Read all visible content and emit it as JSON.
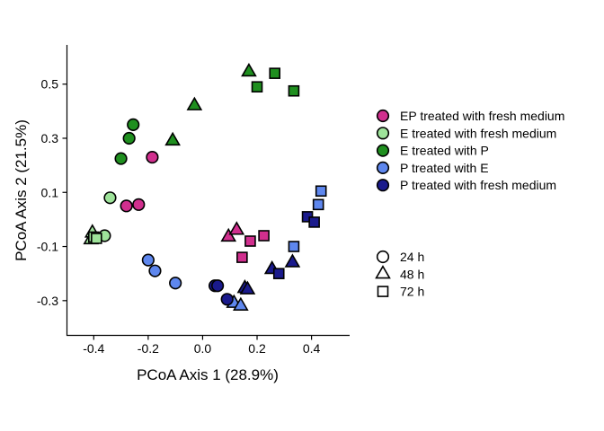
{
  "chart_data": {
    "type": "scatter",
    "title": "",
    "xlabel": "PCoA Axis 1 (28.9%)",
    "ylabel": "PCoA Axis 2 (21.5%)",
    "xlim": [
      -0.5,
      0.54
    ],
    "ylim": [
      -0.43,
      0.645
    ],
    "x_ticks": [
      {
        "value": -0.4,
        "label": "-0.4"
      },
      {
        "value": -0.2,
        "label": "-0.2"
      },
      {
        "value": 0.0,
        "label": "0.0"
      },
      {
        "value": 0.2,
        "label": "0.2"
      },
      {
        "value": 0.4,
        "label": "0.4"
      }
    ],
    "y_ticks": [
      {
        "value": -0.3,
        "label": "-0.3"
      },
      {
        "value": -0.1,
        "label": "-0.1"
      },
      {
        "value": 0.1,
        "label": "0.1"
      },
      {
        "value": 0.3,
        "label": "0.3"
      },
      {
        "value": 0.5,
        "label": "0.5"
      }
    ],
    "grid": false,
    "legend_placement": "right",
    "shape_legend": [
      {
        "shape": "circle",
        "label": "24 h"
      },
      {
        "shape": "triangle",
        "label": "48 h"
      },
      {
        "shape": "square",
        "label": "72 h"
      }
    ],
    "series": [
      {
        "name": "EP treated with fresh medium",
        "color": "#d12f8e",
        "points": [
          {
            "x": -0.28,
            "y": 0.05,
            "shape": "circle"
          },
          {
            "x": -0.235,
            "y": 0.055,
            "shape": "circle"
          },
          {
            "x": -0.185,
            "y": 0.23,
            "shape": "circle"
          },
          {
            "x": 0.095,
            "y": -0.065,
            "shape": "triangle"
          },
          {
            "x": 0.125,
            "y": -0.04,
            "shape": "triangle"
          },
          {
            "x": 0.145,
            "y": -0.14,
            "shape": "square"
          },
          {
            "x": 0.175,
            "y": -0.08,
            "shape": "square"
          },
          {
            "x": 0.225,
            "y": -0.06,
            "shape": "square"
          }
        ]
      },
      {
        "name": "E treated with fresh medium",
        "color": "#9ee39a",
        "points": [
          {
            "x": -0.34,
            "y": 0.08,
            "shape": "circle"
          },
          {
            "x": -0.36,
            "y": -0.06,
            "shape": "circle"
          },
          {
            "x": -0.41,
            "y": -0.075,
            "shape": "triangle"
          },
          {
            "x": -0.405,
            "y": -0.05,
            "shape": "triangle"
          },
          {
            "x": -0.4,
            "y": -0.065,
            "shape": "square"
          },
          {
            "x": -0.39,
            "y": -0.07,
            "shape": "square"
          }
        ]
      },
      {
        "name": "E treated with P",
        "color": "#1f8f1f",
        "points": [
          {
            "x": -0.3,
            "y": 0.225,
            "shape": "circle"
          },
          {
            "x": -0.27,
            "y": 0.3,
            "shape": "circle"
          },
          {
            "x": -0.255,
            "y": 0.35,
            "shape": "circle"
          },
          {
            "x": -0.11,
            "y": 0.29,
            "shape": "triangle"
          },
          {
            "x": -0.03,
            "y": 0.42,
            "shape": "triangle"
          },
          {
            "x": 0.17,
            "y": 0.545,
            "shape": "triangle"
          },
          {
            "x": 0.2,
            "y": 0.49,
            "shape": "square"
          },
          {
            "x": 0.265,
            "y": 0.54,
            "shape": "square"
          },
          {
            "x": 0.335,
            "y": 0.475,
            "shape": "square"
          }
        ]
      },
      {
        "name": "P treated with E",
        "color": "#5e87ee",
        "points": [
          {
            "x": -0.2,
            "y": -0.15,
            "shape": "circle"
          },
          {
            "x": -0.175,
            "y": -0.19,
            "shape": "circle"
          },
          {
            "x": -0.1,
            "y": -0.235,
            "shape": "circle"
          },
          {
            "x": 0.115,
            "y": -0.31,
            "shape": "triangle"
          },
          {
            "x": 0.14,
            "y": -0.32,
            "shape": "triangle"
          },
          {
            "x": 0.335,
            "y": -0.1,
            "shape": "square"
          },
          {
            "x": 0.425,
            "y": 0.055,
            "shape": "square"
          },
          {
            "x": 0.435,
            "y": 0.105,
            "shape": "square"
          }
        ]
      },
      {
        "name": "P treated with fresh medium",
        "color": "#1a1a8c",
        "points": [
          {
            "x": 0.045,
            "y": -0.245,
            "shape": "circle"
          },
          {
            "x": 0.055,
            "y": -0.245,
            "shape": "circle"
          },
          {
            "x": 0.09,
            "y": -0.295,
            "shape": "circle"
          },
          {
            "x": 0.155,
            "y": -0.255,
            "shape": "triangle"
          },
          {
            "x": 0.165,
            "y": -0.26,
            "shape": "triangle"
          },
          {
            "x": 0.255,
            "y": -0.185,
            "shape": "triangle"
          },
          {
            "x": 0.33,
            "y": -0.16,
            "shape": "triangle"
          },
          {
            "x": 0.28,
            "y": -0.2,
            "shape": "square"
          },
          {
            "x": 0.385,
            "y": 0.01,
            "shape": "square"
          },
          {
            "x": 0.41,
            "y": -0.01,
            "shape": "square"
          }
        ]
      }
    ]
  }
}
